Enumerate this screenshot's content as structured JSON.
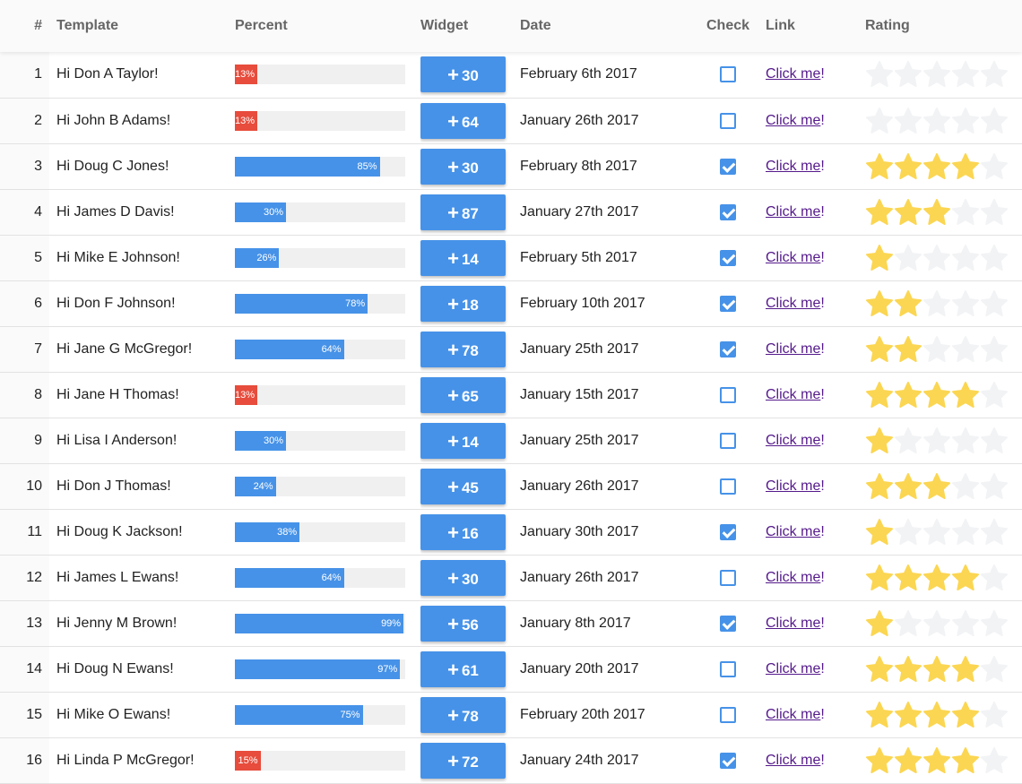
{
  "colors": {
    "accent": "#4692e8",
    "low": "#e74c3c",
    "star_on": "#fbd652",
    "star_off": "#f2f3f5",
    "link": "#551a8b"
  },
  "headers": {
    "num": "#",
    "template": "Template",
    "percent": "Percent",
    "widget": "Widget",
    "date": "Date",
    "check": "Check",
    "link": "Link",
    "rating": "Rating"
  },
  "link_text": "Click me",
  "link_suffix": "!",
  "rows": [
    {
      "num": "1",
      "template": "Hi Don A Taylor!",
      "percent": 13,
      "percent_label": "13%",
      "widget": "30",
      "date": "February 6th 2017",
      "checked": false,
      "rating": 0
    },
    {
      "num": "2",
      "template": "Hi John B Adams!",
      "percent": 13,
      "percent_label": "13%",
      "widget": "64",
      "date": "January 26th 2017",
      "checked": false,
      "rating": 0
    },
    {
      "num": "3",
      "template": "Hi Doug C Jones!",
      "percent": 85,
      "percent_label": "85%",
      "widget": "30",
      "date": "February 8th 2017",
      "checked": true,
      "rating": 4
    },
    {
      "num": "4",
      "template": "Hi James D Davis!",
      "percent": 30,
      "percent_label": "30%",
      "widget": "87",
      "date": "January 27th 2017",
      "checked": true,
      "rating": 3
    },
    {
      "num": "5",
      "template": "Hi Mike E Johnson!",
      "percent": 26,
      "percent_label": "26%",
      "widget": "14",
      "date": "February 5th 2017",
      "checked": true,
      "rating": 1
    },
    {
      "num": "6",
      "template": "Hi Don F Johnson!",
      "percent": 78,
      "percent_label": "78%",
      "widget": "18",
      "date": "February 10th 2017",
      "checked": true,
      "rating": 2
    },
    {
      "num": "7",
      "template": "Hi Jane G McGregor!",
      "percent": 64,
      "percent_label": "64%",
      "widget": "78",
      "date": "January 25th 2017",
      "checked": true,
      "rating": 2
    },
    {
      "num": "8",
      "template": "Hi Jane H Thomas!",
      "percent": 13,
      "percent_label": "13%",
      "widget": "65",
      "date": "January 15th 2017",
      "checked": false,
      "rating": 4
    },
    {
      "num": "9",
      "template": "Hi Lisa I Anderson!",
      "percent": 30,
      "percent_label": "30%",
      "widget": "14",
      "date": "January 25th 2017",
      "checked": false,
      "rating": 1
    },
    {
      "num": "10",
      "template": "Hi Don J Thomas!",
      "percent": 24,
      "percent_label": "24%",
      "widget": "45",
      "date": "January 26th 2017",
      "checked": false,
      "rating": 3
    },
    {
      "num": "11",
      "template": "Hi Doug K Jackson!",
      "percent": 38,
      "percent_label": "38%",
      "widget": "16",
      "date": "January 30th 2017",
      "checked": true,
      "rating": 1
    },
    {
      "num": "12",
      "template": "Hi James L Ewans!",
      "percent": 64,
      "percent_label": "64%",
      "widget": "30",
      "date": "January 26th 2017",
      "checked": false,
      "rating": 4
    },
    {
      "num": "13",
      "template": "Hi Jenny M Brown!",
      "percent": 99,
      "percent_label": "99%",
      "widget": "56",
      "date": "January 8th 2017",
      "checked": true,
      "rating": 1
    },
    {
      "num": "14",
      "template": "Hi Doug N Ewans!",
      "percent": 97,
      "percent_label": "97%",
      "widget": "61",
      "date": "January 20th 2017",
      "checked": false,
      "rating": 4
    },
    {
      "num": "15",
      "template": "Hi Mike O Ewans!",
      "percent": 75,
      "percent_label": "75%",
      "widget": "78",
      "date": "February 20th 2017",
      "checked": false,
      "rating": 4
    },
    {
      "num": "16",
      "template": "Hi Linda P McGregor!",
      "percent": 15,
      "percent_label": "15%",
      "widget": "72",
      "date": "January 24th 2017",
      "checked": true,
      "rating": 4
    }
  ]
}
